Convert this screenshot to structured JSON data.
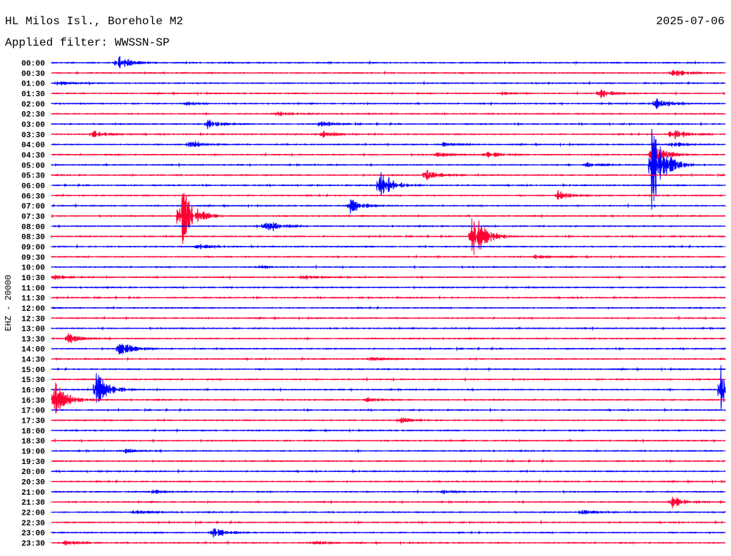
{
  "header": {
    "station": "HL Milos Isl., Borehole M2",
    "date": "2025-07-06",
    "filter": "Applied filter: WWSSN-SP"
  },
  "chart_data": {
    "type": "line",
    "title": "HL Milos Isl., Borehole M2",
    "ylabel": "EHZ - 20000",
    "row_minutes": 30,
    "colors": [
      "#0000ff",
      "#ff0033"
    ],
    "rows": [
      "00:00",
      "00:30",
      "01:00",
      "01:30",
      "02:00",
      "02:30",
      "03:00",
      "03:30",
      "04:00",
      "04:30",
      "05:00",
      "05:30",
      "06:00",
      "06:30",
      "07:00",
      "07:30",
      "08:00",
      "08:30",
      "09:00",
      "09:30",
      "10:00",
      "10:30",
      "11:00",
      "11:30",
      "12:00",
      "12:30",
      "13:00",
      "13:30",
      "14:00",
      "14:30",
      "15:00",
      "15:30",
      "16:00",
      "16:30",
      "17:00",
      "17:30",
      "18:00",
      "18:30",
      "19:00",
      "19:30",
      "20:00",
      "20:30",
      "21:00",
      "21:30",
      "22:00",
      "22:30",
      "23:00",
      "23:30"
    ],
    "events": [
      {
        "row": 0,
        "minute": 2.95,
        "amp": 12
      },
      {
        "row": 1,
        "minute": 27.6,
        "amp": 8
      },
      {
        "row": 2,
        "minute": 0.25,
        "amp": 4
      },
      {
        "row": 3,
        "minute": 24.4,
        "amp": 8
      },
      {
        "row": 3,
        "minute": 20,
        "amp": 2
      },
      {
        "row": 4,
        "minute": 26.9,
        "amp": 10
      },
      {
        "row": 4,
        "minute": 6,
        "amp": 2
      },
      {
        "row": 5,
        "minute": 10.1,
        "amp": 3
      },
      {
        "row": 6,
        "minute": 6.9,
        "amp": 8
      },
      {
        "row": 6,
        "minute": 12,
        "amp": 4
      },
      {
        "row": 7,
        "minute": 1.8,
        "amp": 6
      },
      {
        "row": 7,
        "minute": 12.1,
        "amp": 6
      },
      {
        "row": 7,
        "minute": 27.6,
        "amp": 10
      },
      {
        "row": 8,
        "minute": 6.1,
        "amp": 7
      },
      {
        "row": 8,
        "minute": 17.4,
        "amp": 4
      },
      {
        "row": 8,
        "minute": 27.6,
        "amp": 5
      },
      {
        "row": 9,
        "minute": 19.3,
        "amp": 6
      },
      {
        "row": 9,
        "minute": 17.1,
        "amp": 4
      },
      {
        "row": 9,
        "minute": 26.7,
        "amp": 20
      },
      {
        "row": 10,
        "minute": 26.7,
        "amp": 70
      },
      {
        "row": 10,
        "minute": 23.8,
        "amp": 5
      },
      {
        "row": 11,
        "minute": 16.6,
        "amp": 10
      },
      {
        "row": 12,
        "minute": 14.6,
        "amp": 25
      },
      {
        "row": 13,
        "minute": 22.5,
        "amp": 8
      },
      {
        "row": 14,
        "minute": 13.3,
        "amp": 12
      },
      {
        "row": 15,
        "minute": 5.7,
        "amp": 55
      },
      {
        "row": 16,
        "minute": 9.5,
        "amp": 15
      },
      {
        "row": 17,
        "minute": 18.7,
        "amp": 45
      },
      {
        "row": 18,
        "minute": 6.5,
        "amp": 5
      },
      {
        "row": 19,
        "minute": 21.5,
        "amp": 3
      },
      {
        "row": 20,
        "minute": 9.2,
        "amp": 2
      },
      {
        "row": 21,
        "minute": 11.2,
        "amp": 4
      },
      {
        "row": 21,
        "minute": 0.1,
        "amp": 4
      },
      {
        "row": 27,
        "minute": 0.7,
        "amp": 8
      },
      {
        "row": 28,
        "minute": 3,
        "amp": 14
      },
      {
        "row": 29,
        "minute": 14.2,
        "amp": 3
      },
      {
        "row": 32,
        "minute": 2,
        "amp": 25
      },
      {
        "row": 32,
        "minute": 29.8,
        "amp": 35
      },
      {
        "row": 33,
        "minute": 0.1,
        "amp": 30
      },
      {
        "row": 33,
        "minute": 14,
        "amp": 3
      },
      {
        "row": 35,
        "minute": 15.5,
        "amp": 5
      },
      {
        "row": 38,
        "minute": 3.3,
        "amp": 3
      },
      {
        "row": 42,
        "minute": 4.4,
        "amp": 4
      },
      {
        "row": 42,
        "minute": 17.4,
        "amp": 3
      },
      {
        "row": 43,
        "minute": 27.6,
        "amp": 10
      },
      {
        "row": 44,
        "minute": 3.7,
        "amp": 4
      },
      {
        "row": 44,
        "minute": 23.6,
        "amp": 4
      },
      {
        "row": 46,
        "minute": 7.2,
        "amp": 8
      },
      {
        "row": 47,
        "minute": 0.6,
        "amp": 4
      },
      {
        "row": 47,
        "minute": 11.7,
        "amp": 3
      }
    ]
  }
}
